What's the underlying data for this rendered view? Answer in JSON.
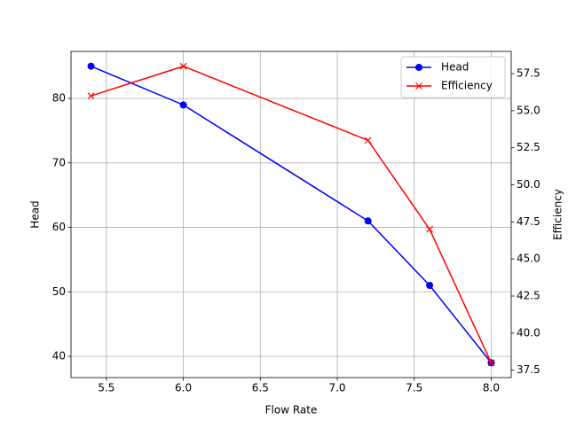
{
  "chart_data": {
    "type": "line",
    "x_label": "Flow Rate",
    "y_label": "Head",
    "y2_label": "Efficiency",
    "x": [
      5.4,
      6.0,
      7.2,
      7.6,
      8.0
    ],
    "series": [
      {
        "name": "Head",
        "color": "#0000ff",
        "marker": "o",
        "values": [
          85,
          79,
          61,
          51,
          39
        ]
      },
      {
        "name": "Efficiency",
        "color": "#ff0000",
        "marker": "x",
        "axis": "y2",
        "values": [
          56,
          58,
          53,
          47,
          38
        ]
      }
    ],
    "xlim": [
      5.27,
      8.13
    ],
    "xticks": [
      5.5,
      {
        "value": 6.0,
        "label": "6.0"
      },
      6.5,
      {
        "value": 7.0,
        "label": "7.0"
      },
      7.5,
      {
        "value": 8.0,
        "label": "8.0"
      }
    ],
    "ylim": [
      36.7,
      87.3
    ],
    "yticks": [
      40,
      50,
      60,
      70,
      80
    ],
    "y2lim": [
      37.0,
      59.0
    ],
    "y2ticks": [
      37.5,
      {
        "value": 40.0,
        "label": "40.0"
      },
      42.5,
      {
        "value": 45.0,
        "label": "45.0"
      },
      47.5,
      {
        "value": 50.0,
        "label": "50.0"
      },
      52.5,
      {
        "value": 55.0,
        "label": "55.0"
      },
      57.5
    ],
    "grid": true,
    "legend": "upper right"
  }
}
